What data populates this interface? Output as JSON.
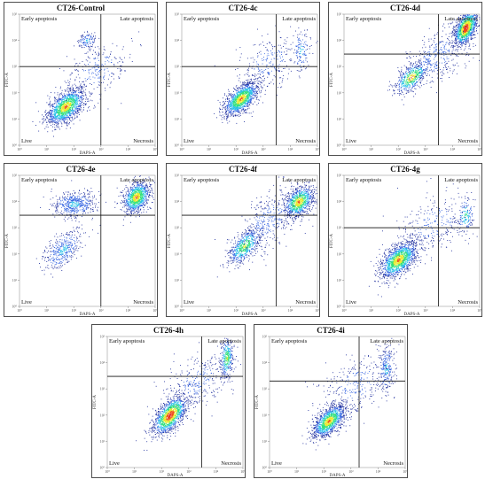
{
  "figure": {
    "panels": [
      {
        "id": "control",
        "title": "CT26-Control",
        "quadrant_labels": {
          "ul": "Early apoptosis",
          "ur": "Late apoptosis",
          "ll": "Live",
          "lr": "Necrosis"
        },
        "x_axis_label": "DAPS-A",
        "y_axis_label": "FITC-A"
      },
      {
        "id": "4c",
        "title": "CT26-4c",
        "quadrant_labels": {
          "ul": "Early apoptosis",
          "ur": "Late apoptosis",
          "ll": "Live",
          "lr": "Necrosis"
        },
        "x_axis_label": "DAPS-A",
        "y_axis_label": "FITC-A"
      },
      {
        "id": "4d",
        "title": "CT26-4d",
        "quadrant_labels": {
          "ul": "Early apoptosis",
          "ur": "Late apoptosis",
          "ll": "Live",
          "lr": "Necrosis"
        },
        "x_axis_label": "DAPS-A",
        "y_axis_label": "FITC-A"
      },
      {
        "id": "4e",
        "title": "CT26-4e",
        "quadrant_labels": {
          "ul": "Early apoptosis",
          "ur": "Late apoptosis",
          "ll": "Live",
          "lr": "Necrosis"
        },
        "x_axis_label": "DAPS-A",
        "y_axis_label": "FITC-A"
      },
      {
        "id": "4f",
        "title": "CT26-4f",
        "quadrant_labels": {
          "ul": "Early apoptosis",
          "ur": "Late apoptosis",
          "ll": "Live",
          "lr": "Necrosis"
        },
        "x_axis_label": "DAPS-A",
        "y_axis_label": "FITC-A"
      },
      {
        "id": "4g",
        "title": "CT26-4g",
        "quadrant_labels": {
          "ul": "Early apoptosis",
          "ur": "Late apoptosis",
          "ll": "Live",
          "lr": "Necrosis"
        },
        "x_axis_label": "DAPS-A",
        "y_axis_label": "FITC-A"
      },
      {
        "id": "4h",
        "title": "CT26-4h",
        "quadrant_labels": {
          "ul": "Early apoptosis",
          "ur": "Late apoptosis",
          "ll": "Live",
          "lr": "Necrosis"
        },
        "x_axis_label": "DAPS-A",
        "y_axis_label": "FITC-A"
      },
      {
        "id": "4i",
        "title": "CT26-4i",
        "quadrant_labels": {
          "ul": "Early apoptosis",
          "ur": "Late apoptosis",
          "ll": "Live",
          "lr": "Necrosis"
        },
        "x_axis_label": "DAPS-A",
        "y_axis_label": "FITC-A"
      }
    ],
    "density_colors": [
      "#1a2a9c",
      "#2f5fe0",
      "#25c0e8",
      "#2fe07a",
      "#e8e82a",
      "#ef4a1a",
      "#e0102a"
    ]
  },
  "chart_data": [
    {
      "type": "scatter",
      "title": "CT26-Control",
      "xlabel": "DAPS-A",
      "ylabel": "FITC-A",
      "x_scale": "log",
      "y_scale": "log",
      "xlim": [
        1,
        100000
      ],
      "ylim": [
        1,
        100000
      ],
      "gate": {
        "x": 1000,
        "y": 1000
      },
      "populations": [
        {
          "center": [
            50,
            30
          ],
          "spread": [
            0.35,
            0.35
          ],
          "corr": 0.55,
          "count": 1400,
          "peak": 5
        },
        {
          "center": [
            300,
            10000
          ],
          "spread": [
            0.18,
            0.15
          ],
          "corr": 0.2,
          "count": 120,
          "peak": 2
        },
        {
          "center": [
            800,
            800
          ],
          "spread": [
            0.6,
            0.55
          ],
          "corr": 0.3,
          "count": 250,
          "peak": 1
        }
      ]
    },
    {
      "type": "scatter",
      "title": "CT26-4c",
      "xlabel": "DAPS-A",
      "ylabel": "FITC-A",
      "x_scale": "log",
      "y_scale": "log",
      "xlim": [
        1,
        100000
      ],
      "ylim": [
        1,
        100000
      ],
      "gate": {
        "x": 3000,
        "y": 1000
      },
      "populations": [
        {
          "center": [
            150,
            60
          ],
          "spread": [
            0.32,
            0.32
          ],
          "corr": 0.6,
          "count": 1300,
          "peak": 5
        },
        {
          "center": [
            25000,
            4000
          ],
          "spread": [
            0.15,
            0.45
          ],
          "corr": 0.1,
          "count": 130,
          "peak": 2
        },
        {
          "center": [
            1500,
            1500
          ],
          "spread": [
            0.6,
            0.55
          ],
          "corr": 0.4,
          "count": 250,
          "peak": 1
        }
      ]
    },
    {
      "type": "scatter",
      "title": "CT26-4d",
      "xlabel": "DAPS-A",
      "ylabel": "FITC-A",
      "x_scale": "log",
      "y_scale": "log",
      "xlim": [
        1,
        100000
      ],
      "ylim": [
        1,
        100000
      ],
      "gate": {
        "x": 3000,
        "y": 3000
      },
      "populations": [
        {
          "center": [
            300,
            400
          ],
          "spread": [
            0.3,
            0.3
          ],
          "corr": 0.6,
          "count": 500,
          "peak": 5
        },
        {
          "center": [
            30000,
            30000
          ],
          "spread": [
            0.22,
            0.35
          ],
          "corr": 0.5,
          "count": 1200,
          "peak": 6
        },
        {
          "center": [
            2500,
            2500
          ],
          "spread": [
            0.6,
            0.6
          ],
          "corr": 0.5,
          "count": 400,
          "peak": 1
        }
      ]
    },
    {
      "type": "scatter",
      "title": "CT26-4e",
      "xlabel": "DAPS-A",
      "ylabel": "FITC-A",
      "x_scale": "log",
      "y_scale": "log",
      "xlim": [
        1,
        100000
      ],
      "ylim": [
        1,
        100000
      ],
      "gate": {
        "x": 1000,
        "y": 3000
      },
      "populations": [
        {
          "center": [
            20000,
            15000
          ],
          "spread": [
            0.25,
            0.3
          ],
          "corr": 0.3,
          "count": 1000,
          "peak": 5
        },
        {
          "center": [
            100,
            8000
          ],
          "spread": [
            0.4,
            0.25
          ],
          "corr": 0.1,
          "count": 500,
          "peak": 2
        },
        {
          "center": [
            40,
            150
          ],
          "spread": [
            0.35,
            0.4
          ],
          "corr": 0.6,
          "count": 400,
          "peak": 2
        }
      ]
    },
    {
      "type": "scatter",
      "title": "CT26-4f",
      "xlabel": "DAPS-A",
      "ylabel": "FITC-A",
      "x_scale": "log",
      "y_scale": "log",
      "xlim": [
        1,
        100000
      ],
      "ylim": [
        1,
        100000
      ],
      "gate": {
        "x": 3000,
        "y": 3000
      },
      "populations": [
        {
          "center": [
            20000,
            10000
          ],
          "spread": [
            0.28,
            0.3
          ],
          "corr": 0.4,
          "count": 900,
          "peak": 5
        },
        {
          "center": [
            200,
            200
          ],
          "spread": [
            0.3,
            0.35
          ],
          "corr": 0.6,
          "count": 600,
          "peak": 4
        },
        {
          "center": [
            1500,
            2000
          ],
          "spread": [
            0.6,
            0.6
          ],
          "corr": 0.5,
          "count": 350,
          "peak": 1
        }
      ]
    },
    {
      "type": "scatter",
      "title": "CT26-4g",
      "xlabel": "DAPS-A",
      "ylabel": "FITC-A",
      "x_scale": "log",
      "y_scale": "log",
      "xlim": [
        1,
        100000
      ],
      "ylim": [
        1,
        100000
      ],
      "gate": {
        "x": 3000,
        "y": 1000
      },
      "populations": [
        {
          "center": [
            100,
            60
          ],
          "spread": [
            0.35,
            0.35
          ],
          "corr": 0.55,
          "count": 1400,
          "peak": 5
        },
        {
          "center": [
            30000,
            3000
          ],
          "spread": [
            0.15,
            0.35
          ],
          "corr": 0.1,
          "count": 150,
          "peak": 3
        },
        {
          "center": [
            2000,
            1500
          ],
          "spread": [
            0.7,
            0.55
          ],
          "corr": 0.3,
          "count": 300,
          "peak": 1
        }
      ]
    },
    {
      "type": "scatter",
      "title": "CT26-4h",
      "xlabel": "DAPS-A",
      "ylabel": "FITC-A",
      "x_scale": "log",
      "y_scale": "log",
      "xlim": [
        1,
        100000
      ],
      "ylim": [
        1,
        100000
      ],
      "gate": {
        "x": 3000,
        "y": 3000
      },
      "populations": [
        {
          "center": [
            200,
            100
          ],
          "spread": [
            0.32,
            0.38
          ],
          "corr": 0.6,
          "count": 1300,
          "peak": 6
        },
        {
          "center": [
            25000,
            15000
          ],
          "spread": [
            0.12,
            0.4
          ],
          "corr": 0.1,
          "count": 350,
          "peak": 4
        },
        {
          "center": [
            2000,
            2000
          ],
          "spread": [
            0.6,
            0.55
          ],
          "corr": 0.4,
          "count": 300,
          "peak": 1
        }
      ]
    },
    {
      "type": "scatter",
      "title": "CT26-4i",
      "xlabel": "DAPS-A",
      "ylabel": "FITC-A",
      "x_scale": "log",
      "y_scale": "log",
      "xlim": [
        1,
        100000
      ],
      "ylim": [
        1,
        100000
      ],
      "gate": {
        "x": 2000,
        "y": 2000
      },
      "populations": [
        {
          "center": [
            150,
            60
          ],
          "spread": [
            0.3,
            0.32
          ],
          "corr": 0.6,
          "count": 1200,
          "peak": 5
        },
        {
          "center": [
            20000,
            6000
          ],
          "spread": [
            0.14,
            0.45
          ],
          "corr": 0.1,
          "count": 250,
          "peak": 2
        },
        {
          "center": [
            1500,
            1500
          ],
          "spread": [
            0.65,
            0.6
          ],
          "corr": 0.4,
          "count": 300,
          "peak": 1
        }
      ]
    }
  ]
}
